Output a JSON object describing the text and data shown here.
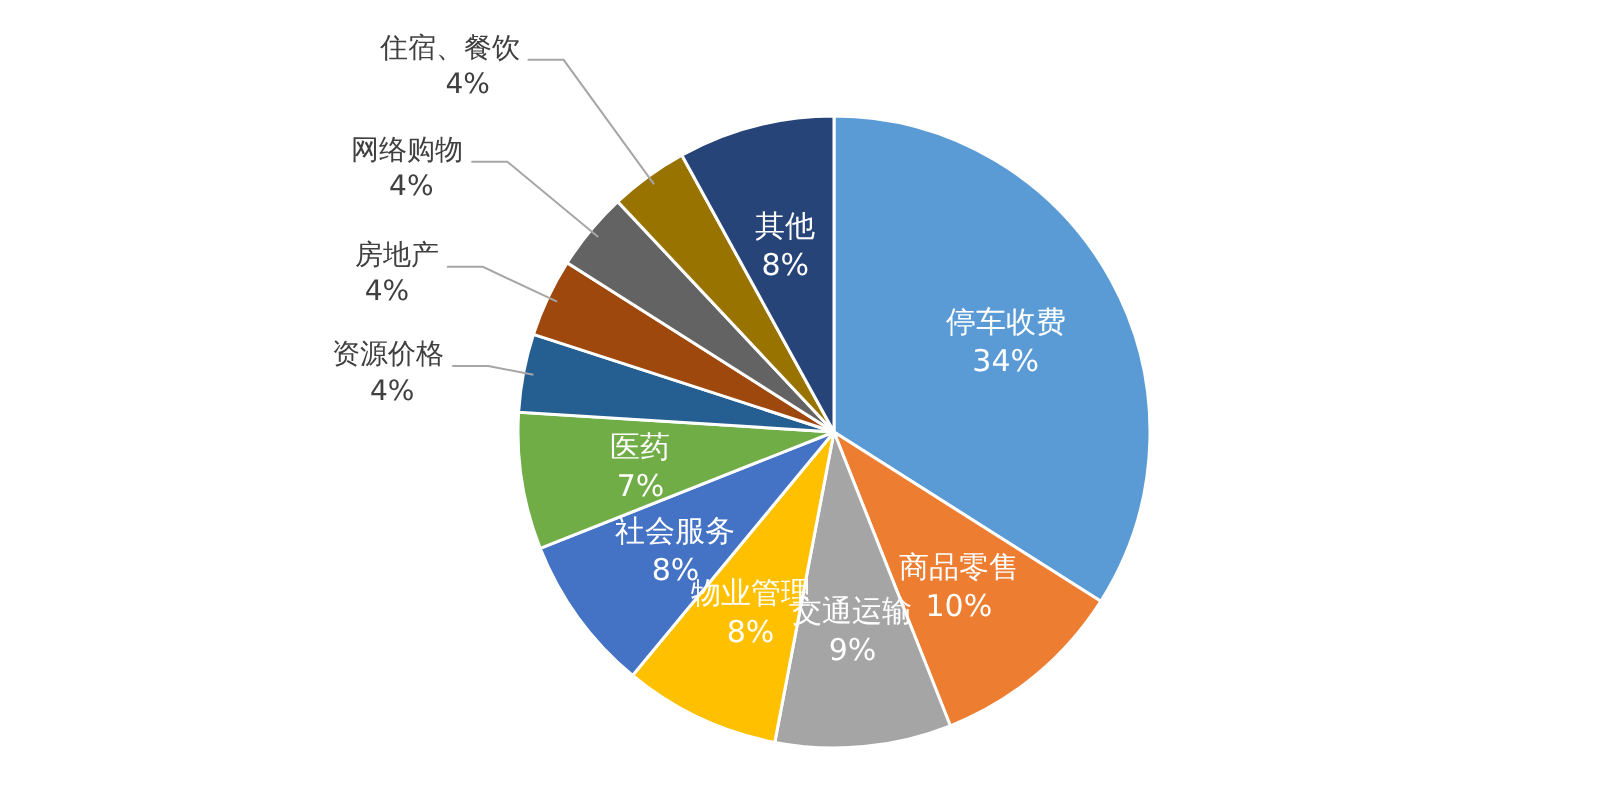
{
  "chart_data": {
    "type": "pie",
    "categories": [
      "停车收费",
      "商品零售",
      "交通运输",
      "物业管理",
      "社会服务",
      "医药",
      "资源价格",
      "房地产",
      "网络购物",
      "住宿、餐饮",
      "其他"
    ],
    "values": [
      34,
      10,
      9,
      8,
      8,
      7,
      4,
      4,
      4,
      4,
      8
    ],
    "colors": [
      "#5b9bd5",
      "#ed7d31",
      "#a5a5a5",
      "#ffc000",
      "#4472c4",
      "#70ad47",
      "#255e91",
      "#9e480e",
      "#636363",
      "#997300",
      "#264478"
    ],
    "value_labels": [
      "34%",
      "10%",
      "9%",
      "8%",
      "8%",
      "7%",
      "4%",
      "4%",
      "4%",
      "4%",
      "8%"
    ]
  }
}
